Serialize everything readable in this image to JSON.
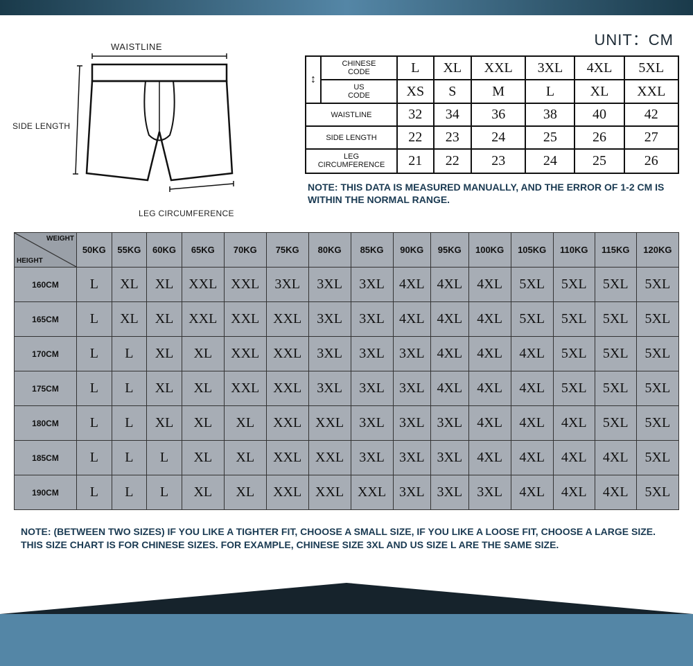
{
  "unit_label": "UNIT：CM",
  "diagram": {
    "waistline": "WAISTLINE",
    "side_length": "SIDE LENGTH",
    "leg_circ": "LEG CIRCUMFERENCE"
  },
  "size_table": {
    "row_labels": [
      "CHINESE CODE",
      "US CODE",
      "WAISTLINE",
      "SIDE LENGTH",
      "LEG CIRCUMFERENCE"
    ],
    "rows": [
      [
        "L",
        "XL",
        "XXL",
        "3XL",
        "4XL",
        "5XL"
      ],
      [
        "XS",
        "S",
        "M",
        "L",
        "XL",
        "XXL"
      ],
      [
        "32",
        "34",
        "36",
        "38",
        "40",
        "42"
      ],
      [
        "22",
        "23",
        "24",
        "25",
        "26",
        "27"
      ],
      [
        "21",
        "22",
        "23",
        "24",
        "25",
        "26"
      ]
    ]
  },
  "note1": "NOTE: THIS DATA IS MEASURED MANUALLY, AND THE ERROR OF 1-2 CM IS WITHIN THE NORMAL RANGE.",
  "big_table": {
    "corner": {
      "weight": "WEIGHT",
      "height": "HEIGHT"
    },
    "weights": [
      "50KG",
      "55KG",
      "60KG",
      "65KG",
      "70KG",
      "75KG",
      "80KG",
      "85KG",
      "90KG",
      "95KG",
      "100KG",
      "105KG",
      "110KG",
      "115KG",
      "120KG"
    ],
    "heights": [
      "160CM",
      "165CM",
      "170CM",
      "175CM",
      "180CM",
      "185CM",
      "190CM"
    ],
    "data": [
      [
        "L",
        "XL",
        "XL",
        "XXL",
        "XXL",
        "3XL",
        "3XL",
        "3XL",
        "4XL",
        "4XL",
        "4XL",
        "5XL",
        "5XL",
        "5XL",
        "5XL"
      ],
      [
        "L",
        "XL",
        "XL",
        "XXL",
        "XXL",
        "XXL",
        "3XL",
        "3XL",
        "4XL",
        "4XL",
        "4XL",
        "5XL",
        "5XL",
        "5XL",
        "5XL"
      ],
      [
        "L",
        "L",
        "XL",
        "XL",
        "XXL",
        "XXL",
        "3XL",
        "3XL",
        "3XL",
        "4XL",
        "4XL",
        "4XL",
        "5XL",
        "5XL",
        "5XL"
      ],
      [
        "L",
        "L",
        "XL",
        "XL",
        "XXL",
        "XXL",
        "3XL",
        "3XL",
        "3XL",
        "4XL",
        "4XL",
        "4XL",
        "5XL",
        "5XL",
        "5XL"
      ],
      [
        "L",
        "L",
        "XL",
        "XL",
        "XL",
        "XXL",
        "XXL",
        "3XL",
        "3XL",
        "3XL",
        "4XL",
        "4XL",
        "4XL",
        "5XL",
        "5XL"
      ],
      [
        "L",
        "L",
        "L",
        "XL",
        "XL",
        "XXL",
        "XXL",
        "3XL",
        "3XL",
        "3XL",
        "4XL",
        "4XL",
        "4XL",
        "4XL",
        "5XL"
      ],
      [
        "L",
        "L",
        "L",
        "XL",
        "XL",
        "XXL",
        "XXL",
        "XXL",
        "3XL",
        "3XL",
        "3XL",
        "4XL",
        "4XL",
        "4XL",
        "5XL"
      ]
    ]
  },
  "note2": "NOTE: (BETWEEN TWO SIZES) IF YOU LIKE A TIGHTER FIT, CHOOSE A SMALL SIZE, IF YOU LIKE A LOOSE FIT, CHOOSE A LARGE SIZE. THIS SIZE CHART IS FOR CHINESE SIZES. FOR EXAMPLE, CHINESE SIZE 3XL AND US SIZE L ARE THE SAME SIZE.",
  "colors": {
    "stripe_dark": "#1a3a4a",
    "stripe_mid": "#5486a6",
    "note_color": "#1a3a52",
    "cell_bg": "#a7adb5",
    "corner_bg": "#9aa0a8",
    "border": "#111111"
  }
}
